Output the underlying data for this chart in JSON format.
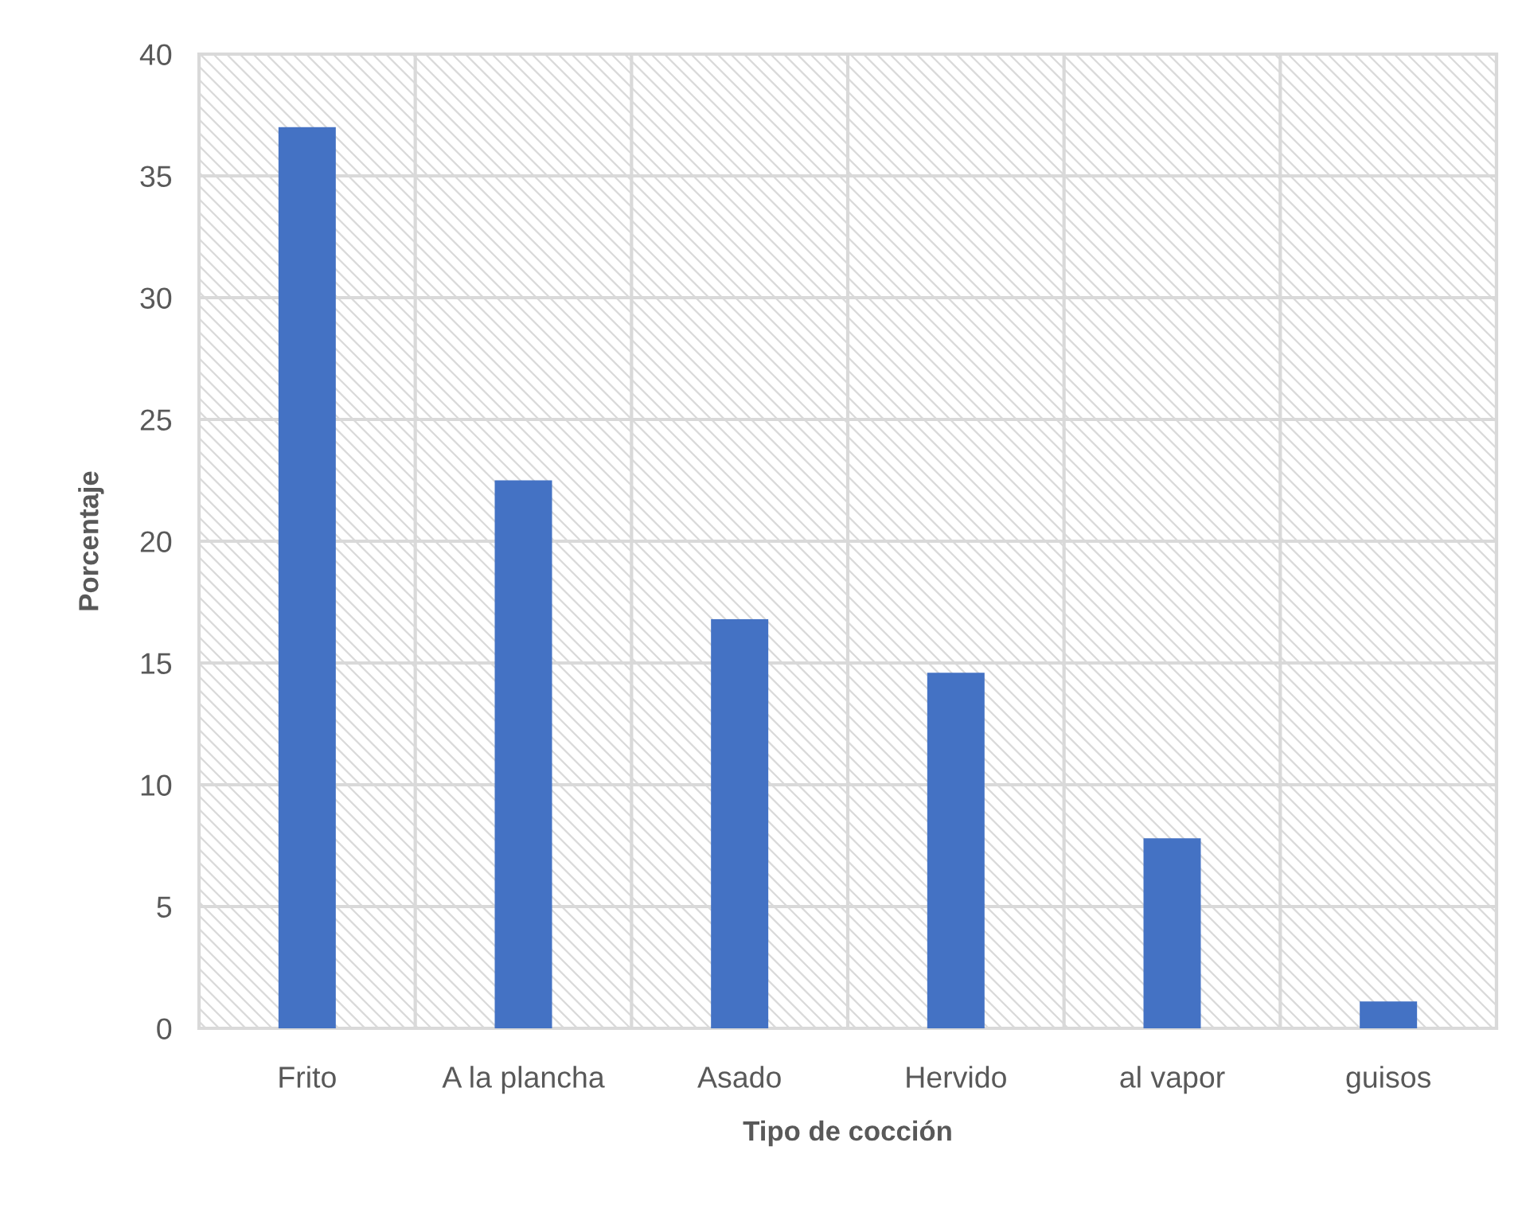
{
  "chart_data": {
    "type": "bar",
    "xlabel": "Tipo de cocción",
    "ylabel": "Porcentaje",
    "categories": [
      "Frito",
      "A la plancha",
      "Asado",
      "Hervido",
      "al vapor",
      "guisos"
    ],
    "values": [
      37.0,
      22.5,
      16.8,
      14.6,
      7.8,
      1.1
    ],
    "color": "#4472c4",
    "ylim": [
      0,
      40
    ],
    "yticks": [
      0,
      5,
      10,
      15,
      20,
      25,
      30,
      35,
      40
    ],
    "grid": true
  }
}
